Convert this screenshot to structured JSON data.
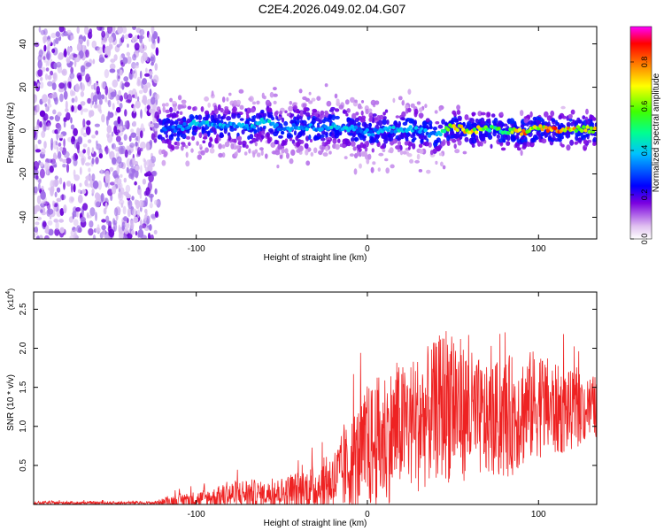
{
  "title": "C2E4.2026.049.02.04.G07",
  "colorbar": {
    "label": "Normalized spectral amplitude",
    "ticks": [
      "0.0",
      "0.2",
      "0.4",
      "0.6",
      "0.8"
    ],
    "tick_values": [
      0.0,
      0.2,
      0.4,
      0.6,
      0.8
    ],
    "range": [
      0,
      0.96
    ],
    "colors": [
      "#ffffff",
      "#e0c0f0",
      "#7a00e0",
      "#0000ff",
      "#00c0ff",
      "#00ff90",
      "#40ff00",
      "#ffff00",
      "#ff8000",
      "#ff0000",
      "#ff00ff"
    ]
  },
  "chart_data": [
    {
      "type": "heatmap",
      "name": "spectrogram",
      "xlabel": "Height of straight line (km)",
      "ylabel": "Frequency (Hz)",
      "xlim": [
        -195,
        134
      ],
      "ylim": [
        -50,
        48
      ],
      "x_ticks": [
        -100,
        0,
        100
      ],
      "x_tick_labels": [
        "-100",
        "0",
        "100"
      ],
      "y_ticks": [
        -40,
        -20,
        0,
        20,
        40
      ],
      "y_tick_labels": [
        "-40",
        "-20",
        "0",
        "20",
        "40"
      ],
      "noise_region_x": [
        -195,
        -122
      ],
      "signal_start_x": -122,
      "ridge": {
        "x": [
          -122,
          -110,
          -100,
          -90,
          -80,
          -70,
          -60,
          -50,
          -40,
          -30,
          -20,
          -10,
          0,
          10,
          20,
          30,
          40,
          50,
          60,
          70,
          80,
          90,
          100,
          110,
          120,
          134
        ],
        "freq": [
          0,
          1,
          4,
          2,
          3,
          1,
          5,
          0,
          2,
          1,
          2,
          1,
          -1,
          0,
          1,
          0,
          -2,
          2,
          0,
          1,
          0,
          -1,
          1,
          0,
          1,
          0
        ],
        "amplitude": [
          0.3,
          0.35,
          0.45,
          0.4,
          0.4,
          0.38,
          0.45,
          0.35,
          0.4,
          0.38,
          0.45,
          0.42,
          0.35,
          0.4,
          0.42,
          0.38,
          0.35,
          0.75,
          0.8,
          0.6,
          0.55,
          0.85,
          0.7,
          0.9,
          0.75,
          0.8
        ]
      }
    },
    {
      "type": "line",
      "name": "snr",
      "xlabel": "Height of straight line (km)",
      "ylabel": "SNR (10 * v/v)",
      "multiplier_label": "(x10",
      "multiplier_exp": "4",
      "xlim": [
        -195,
        134
      ],
      "ylim": [
        0,
        2.72
      ],
      "x_ticks": [
        -100,
        0,
        100
      ],
      "x_tick_labels": [
        "-100",
        "0",
        "100"
      ],
      "y_ticks": [
        0.5,
        1.0,
        1.5,
        2.0,
        2.5
      ],
      "y_tick_labels": [
        "0.5",
        "1.0",
        "1.5",
        "2.0",
        "2.5"
      ],
      "color": "#ee2222",
      "envelope": {
        "x": [
          -195,
          -125,
          -112,
          -100,
          -90,
          -80,
          -70,
          -60,
          -50,
          -40,
          -30,
          -20,
          -15,
          -10,
          0,
          10,
          20,
          30,
          40,
          45,
          50,
          55,
          60,
          70,
          80,
          90,
          100,
          110,
          120,
          134
        ],
        "mean": [
          0.02,
          0.02,
          0.05,
          0.07,
          0.09,
          0.12,
          0.14,
          0.13,
          0.15,
          0.18,
          0.22,
          0.3,
          0.4,
          0.5,
          0.7,
          0.85,
          1.0,
          1.05,
          1.2,
          1.3,
          1.35,
          1.2,
          1.15,
          1.05,
          1.1,
          1.2,
          1.3,
          1.2,
          1.2,
          1.25
        ],
        "amp": [
          0.02,
          0.02,
          0.08,
          0.1,
          0.12,
          0.18,
          0.2,
          0.15,
          0.2,
          0.25,
          0.3,
          0.4,
          0.5,
          0.6,
          0.8,
          0.9,
          0.8,
          0.9,
          0.9,
          1.0,
          1.1,
          0.9,
          0.85,
          0.7,
          0.8,
          0.75,
          0.7,
          0.6,
          0.5,
          0.4
        ]
      }
    }
  ]
}
